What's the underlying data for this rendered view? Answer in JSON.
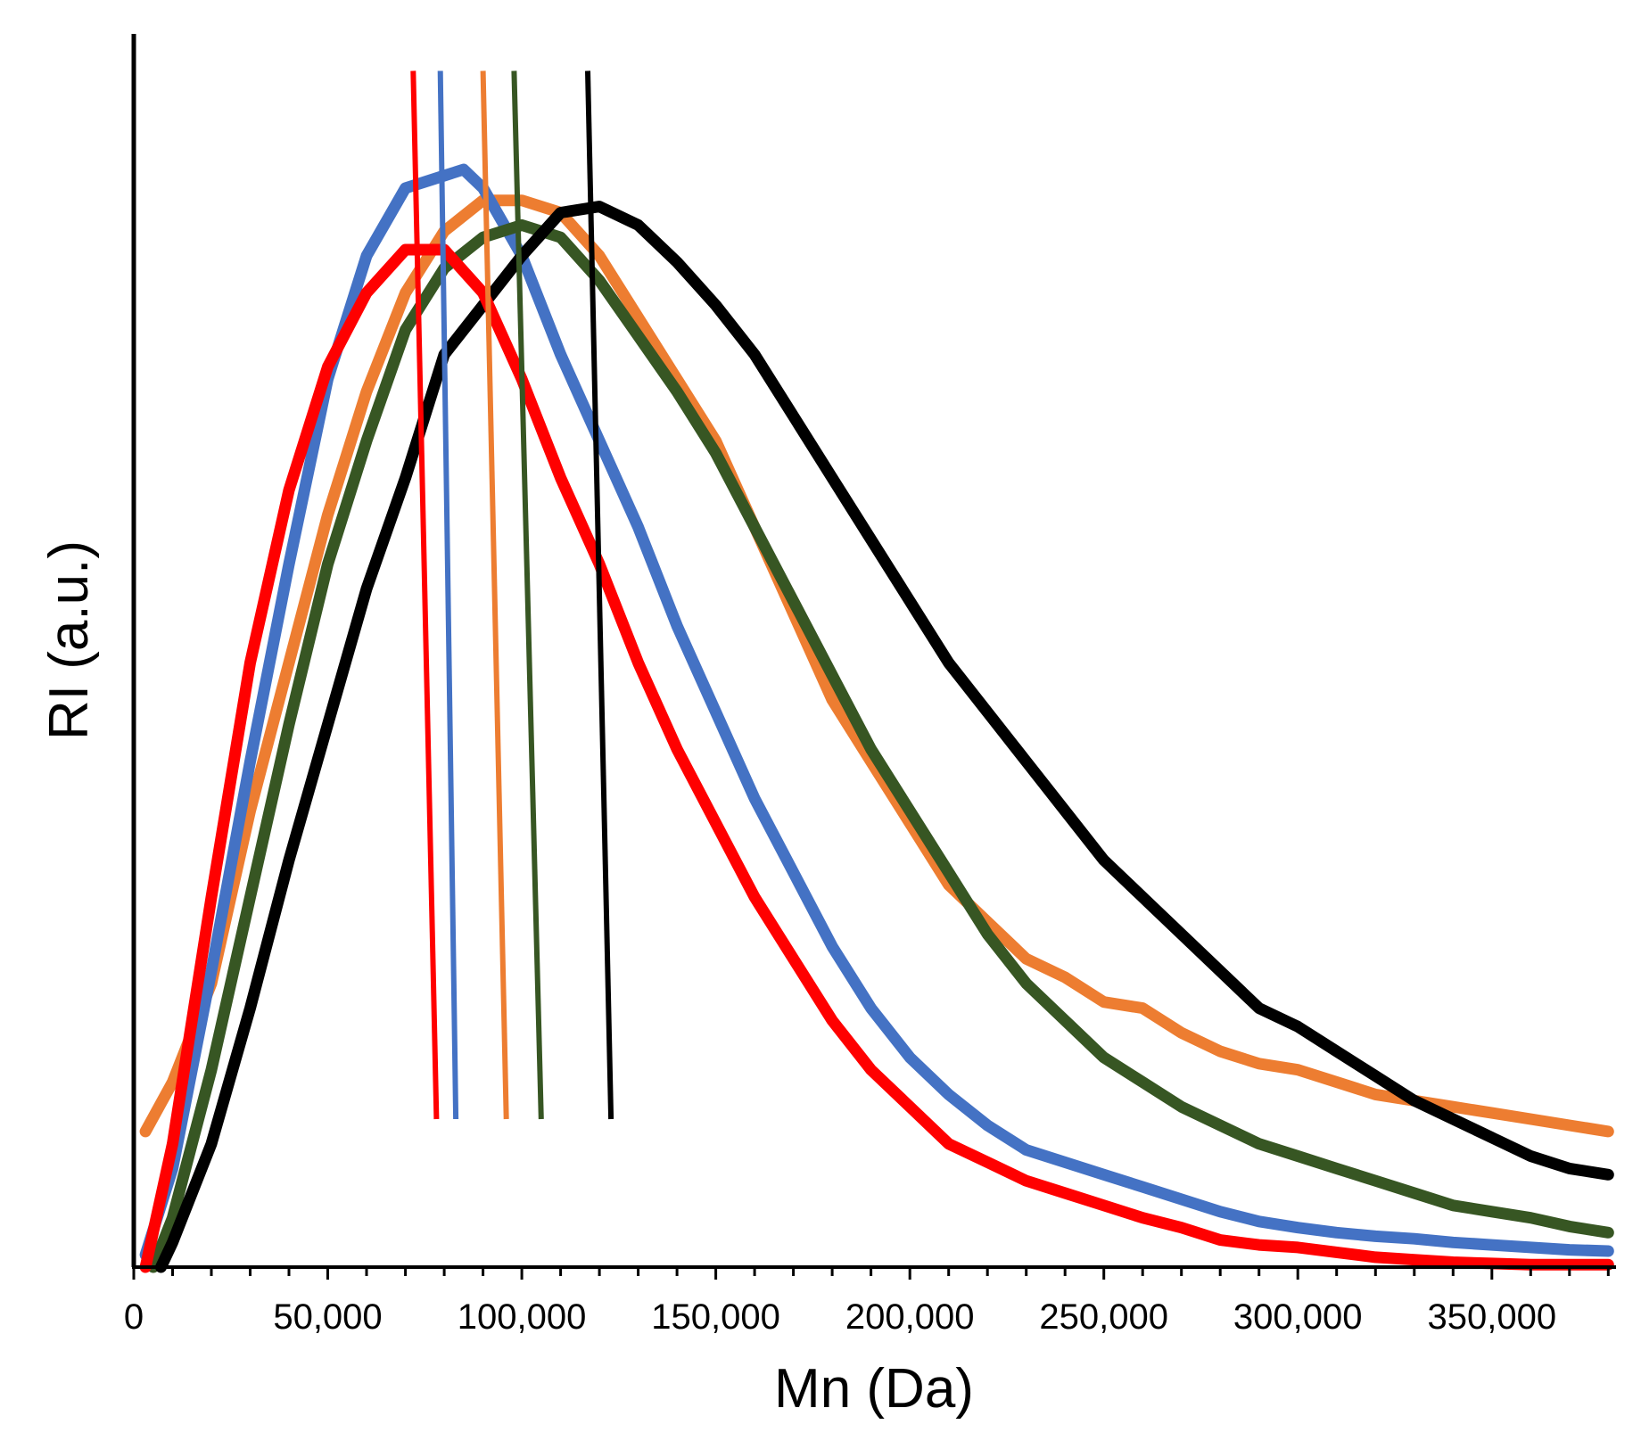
{
  "chart_data": {
    "type": "line",
    "xlabel": "Mn (Da)",
    "ylabel": "RI (a.u.)",
    "xlim": [
      0,
      382000
    ],
    "ylim": [
      0,
      1.0
    ],
    "x_ticks": [
      0,
      50000,
      100000,
      150000,
      200000,
      250000,
      300000,
      350000
    ],
    "x_tick_labels": [
      "0",
      "50,000",
      "100,000",
      "150,000",
      "200,000",
      "250,000",
      "300,000",
      "350,000"
    ],
    "x_minor_tick_step": 10000,
    "grid": false,
    "legend": "none",
    "series": [
      {
        "color": "#ed7d31",
        "points": [
          [
            3000,
            0.11
          ],
          [
            10000,
            0.15
          ],
          [
            20000,
            0.23
          ],
          [
            30000,
            0.37
          ],
          [
            40000,
            0.49
          ],
          [
            50000,
            0.61
          ],
          [
            60000,
            0.71
          ],
          [
            70000,
            0.79
          ],
          [
            80000,
            0.84
          ],
          [
            90000,
            0.865
          ],
          [
            100000,
            0.865
          ],
          [
            110000,
            0.855
          ],
          [
            120000,
            0.82
          ],
          [
            130000,
            0.77
          ],
          [
            140000,
            0.72
          ],
          [
            150000,
            0.67
          ],
          [
            160000,
            0.6
          ],
          [
            170000,
            0.53
          ],
          [
            180000,
            0.46
          ],
          [
            190000,
            0.41
          ],
          [
            200000,
            0.36
          ],
          [
            210000,
            0.31
          ],
          [
            220000,
            0.28
          ],
          [
            230000,
            0.25
          ],
          [
            240000,
            0.235
          ],
          [
            250000,
            0.215
          ],
          [
            260000,
            0.21
          ],
          [
            270000,
            0.19
          ],
          [
            280000,
            0.175
          ],
          [
            290000,
            0.165
          ],
          [
            300000,
            0.16
          ],
          [
            310000,
            0.15
          ],
          [
            320000,
            0.14
          ],
          [
            330000,
            0.135
          ],
          [
            340000,
            0.13
          ],
          [
            350000,
            0.125
          ],
          [
            360000,
            0.12
          ],
          [
            370000,
            0.115
          ],
          [
            380000,
            0.11
          ]
        ]
      },
      {
        "color": "#4472c4",
        "points": [
          [
            3000,
            0.01
          ],
          [
            10000,
            0.08
          ],
          [
            20000,
            0.24
          ],
          [
            30000,
            0.41
          ],
          [
            40000,
            0.57
          ],
          [
            50000,
            0.72
          ],
          [
            60000,
            0.82
          ],
          [
            70000,
            0.875
          ],
          [
            80000,
            0.885
          ],
          [
            85000,
            0.89
          ],
          [
            90000,
            0.875
          ],
          [
            100000,
            0.82
          ],
          [
            110000,
            0.74
          ],
          [
            120000,
            0.67
          ],
          [
            130000,
            0.6
          ],
          [
            140000,
            0.52
          ],
          [
            150000,
            0.45
          ],
          [
            160000,
            0.38
          ],
          [
            170000,
            0.32
          ],
          [
            180000,
            0.26
          ],
          [
            190000,
            0.21
          ],
          [
            200000,
            0.17
          ],
          [
            210000,
            0.14
          ],
          [
            220000,
            0.115
          ],
          [
            230000,
            0.095
          ],
          [
            240000,
            0.085
          ],
          [
            250000,
            0.075
          ],
          [
            260000,
            0.065
          ],
          [
            270000,
            0.055
          ],
          [
            280000,
            0.045
          ],
          [
            290000,
            0.037
          ],
          [
            300000,
            0.032
          ],
          [
            310000,
            0.028
          ],
          [
            320000,
            0.025
          ],
          [
            330000,
            0.023
          ],
          [
            340000,
            0.02
          ],
          [
            350000,
            0.018
          ],
          [
            360000,
            0.016
          ],
          [
            370000,
            0.014
          ],
          [
            380000,
            0.013
          ]
        ]
      },
      {
        "color": "#375623",
        "points": [
          [
            5000,
            0.0
          ],
          [
            10000,
            0.04
          ],
          [
            20000,
            0.16
          ],
          [
            30000,
            0.3
          ],
          [
            40000,
            0.44
          ],
          [
            50000,
            0.57
          ],
          [
            60000,
            0.67
          ],
          [
            70000,
            0.76
          ],
          [
            80000,
            0.81
          ],
          [
            90000,
            0.835
          ],
          [
            100000,
            0.845
          ],
          [
            110000,
            0.835
          ],
          [
            120000,
            0.8
          ],
          [
            130000,
            0.755
          ],
          [
            140000,
            0.71
          ],
          [
            150000,
            0.66
          ],
          [
            160000,
            0.6
          ],
          [
            170000,
            0.54
          ],
          [
            180000,
            0.48
          ],
          [
            190000,
            0.42
          ],
          [
            200000,
            0.37
          ],
          [
            210000,
            0.32
          ],
          [
            220000,
            0.27
          ],
          [
            230000,
            0.23
          ],
          [
            240000,
            0.2
          ],
          [
            250000,
            0.17
          ],
          [
            260000,
            0.15
          ],
          [
            270000,
            0.13
          ],
          [
            280000,
            0.115
          ],
          [
            290000,
            0.1
          ],
          [
            300000,
            0.09
          ],
          [
            310000,
            0.08
          ],
          [
            320000,
            0.07
          ],
          [
            330000,
            0.06
          ],
          [
            340000,
            0.05
          ],
          [
            350000,
            0.045
          ],
          [
            360000,
            0.04
          ],
          [
            370000,
            0.033
          ],
          [
            380000,
            0.028
          ]
        ]
      },
      {
        "color": "#000000",
        "points": [
          [
            7000,
            0.0
          ],
          [
            10000,
            0.02
          ],
          [
            20000,
            0.1
          ],
          [
            30000,
            0.21
          ],
          [
            40000,
            0.33
          ],
          [
            50000,
            0.44
          ],
          [
            60000,
            0.55
          ],
          [
            70000,
            0.64
          ],
          [
            80000,
            0.74
          ],
          [
            90000,
            0.78
          ],
          [
            100000,
            0.82
          ],
          [
            110000,
            0.855
          ],
          [
            120000,
            0.86
          ],
          [
            130000,
            0.845
          ],
          [
            140000,
            0.815
          ],
          [
            150000,
            0.78
          ],
          [
            160000,
            0.74
          ],
          [
            170000,
            0.69
          ],
          [
            180000,
            0.64
          ],
          [
            190000,
            0.59
          ],
          [
            200000,
            0.54
          ],
          [
            210000,
            0.49
          ],
          [
            220000,
            0.45
          ],
          [
            230000,
            0.41
          ],
          [
            240000,
            0.37
          ],
          [
            250000,
            0.33
          ],
          [
            260000,
            0.3
          ],
          [
            270000,
            0.27
          ],
          [
            280000,
            0.24
          ],
          [
            290000,
            0.21
          ],
          [
            300000,
            0.195
          ],
          [
            310000,
            0.175
          ],
          [
            320000,
            0.155
          ],
          [
            330000,
            0.135
          ],
          [
            340000,
            0.12
          ],
          [
            350000,
            0.105
          ],
          [
            360000,
            0.09
          ],
          [
            370000,
            0.08
          ],
          [
            380000,
            0.075
          ]
        ]
      },
      {
        "color": "#ff0000",
        "points": [
          [
            3000,
            0.0
          ],
          [
            10000,
            0.1
          ],
          [
            20000,
            0.3
          ],
          [
            30000,
            0.49
          ],
          [
            40000,
            0.63
          ],
          [
            50000,
            0.73
          ],
          [
            60000,
            0.79
          ],
          [
            70000,
            0.825
          ],
          [
            80000,
            0.825
          ],
          [
            90000,
            0.79
          ],
          [
            100000,
            0.72
          ],
          [
            110000,
            0.64
          ],
          [
            120000,
            0.57
          ],
          [
            130000,
            0.49
          ],
          [
            140000,
            0.42
          ],
          [
            150000,
            0.36
          ],
          [
            160000,
            0.3
          ],
          [
            170000,
            0.25
          ],
          [
            180000,
            0.2
          ],
          [
            190000,
            0.16
          ],
          [
            200000,
            0.13
          ],
          [
            210000,
            0.1
          ],
          [
            220000,
            0.085
          ],
          [
            230000,
            0.07
          ],
          [
            240000,
            0.06
          ],
          [
            250000,
            0.05
          ],
          [
            260000,
            0.04
          ],
          [
            270000,
            0.032
          ],
          [
            280000,
            0.022
          ],
          [
            290000,
            0.018
          ],
          [
            300000,
            0.016
          ],
          [
            310000,
            0.012
          ],
          [
            320000,
            0.008
          ],
          [
            330000,
            0.006
          ],
          [
            340000,
            0.004
          ],
          [
            350000,
            0.003
          ],
          [
            360000,
            0.002
          ],
          [
            370000,
            0.002
          ],
          [
            380000,
            0.002
          ]
        ]
      }
    ],
    "vertical_markers": [
      {
        "color": "#ff0000",
        "x_top": 72000,
        "x_bottom": 78000,
        "y_top": 0.97,
        "y_bottom": 0.12
      },
      {
        "color": "#4472c4",
        "x_top": 79000,
        "x_bottom": 83000,
        "y_top": 0.97,
        "y_bottom": 0.12
      },
      {
        "color": "#ed7d31",
        "x_top": 90000,
        "x_bottom": 96000,
        "y_top": 0.97,
        "y_bottom": 0.12
      },
      {
        "color": "#375623",
        "x_top": 98000,
        "x_bottom": 105000,
        "y_top": 0.97,
        "y_bottom": 0.12
      },
      {
        "color": "#000000",
        "x_top": 117000,
        "x_bottom": 123000,
        "y_top": 0.97,
        "y_bottom": 0.12
      }
    ]
  }
}
